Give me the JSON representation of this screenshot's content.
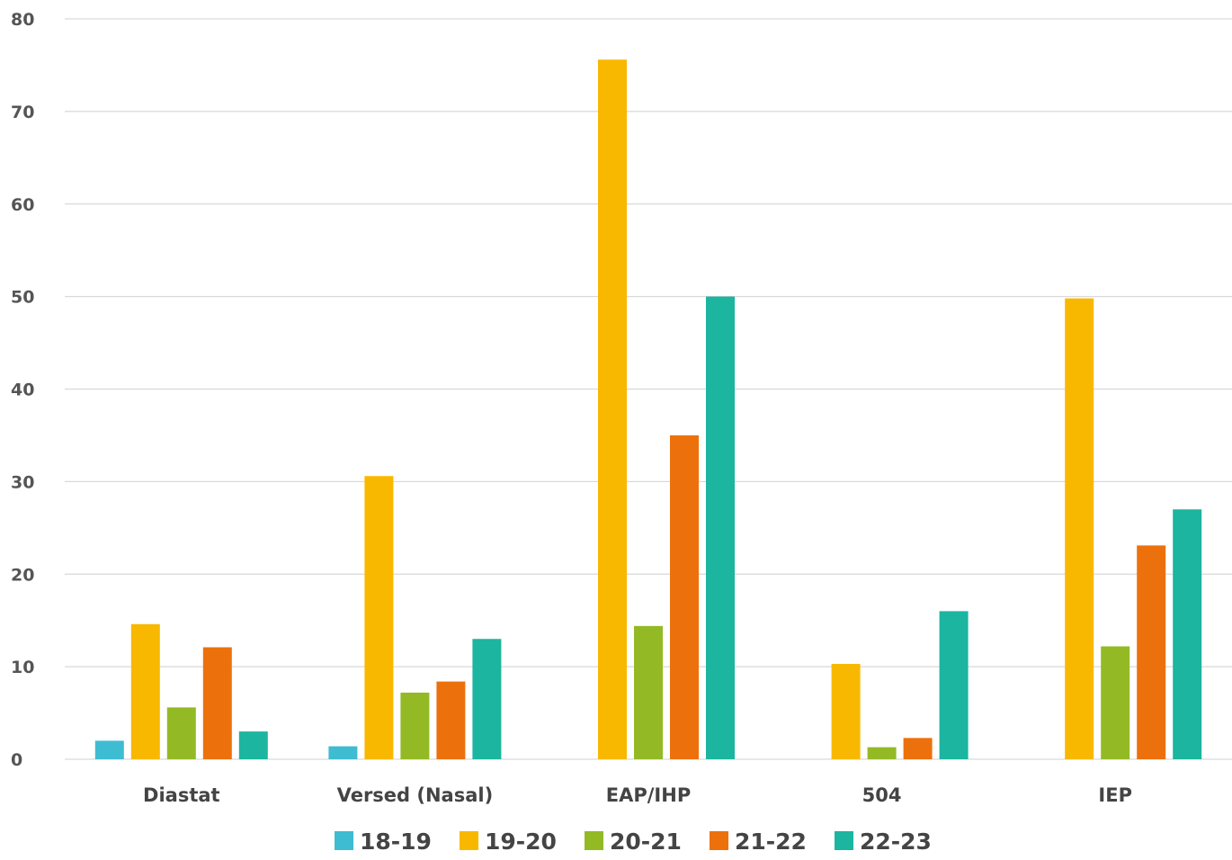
{
  "chart_data": {
    "type": "bar",
    "title": "",
    "xlabel": "",
    "ylabel": "",
    "ylim": [
      0,
      80
    ],
    "yticks": [
      0,
      10,
      20,
      30,
      40,
      50,
      60,
      70,
      80
    ],
    "grid": true,
    "legend_position": "bottom",
    "categories": [
      "Diastat",
      "Versed (Nasal)",
      "EAP/IHP",
      "504",
      "IEP"
    ],
    "series": [
      {
        "name": "18-19",
        "color": "#3ebcd2",
        "values": [
          2,
          1.4,
          0,
          0,
          0
        ]
      },
      {
        "name": "19-20",
        "color": "#f9b800",
        "values": [
          14.6,
          30.6,
          75.6,
          10.3,
          49.8
        ]
      },
      {
        "name": "20-21",
        "color": "#93ba25",
        "values": [
          5.6,
          7.2,
          14.4,
          1.3,
          12.2
        ]
      },
      {
        "name": "21-22",
        "color": "#ec710d",
        "values": [
          12.1,
          8.4,
          35,
          2.3,
          23.1
        ]
      },
      {
        "name": "22-23",
        "color": "#1cb5a0",
        "values": [
          3,
          13,
          50,
          16,
          27
        ]
      }
    ]
  }
}
